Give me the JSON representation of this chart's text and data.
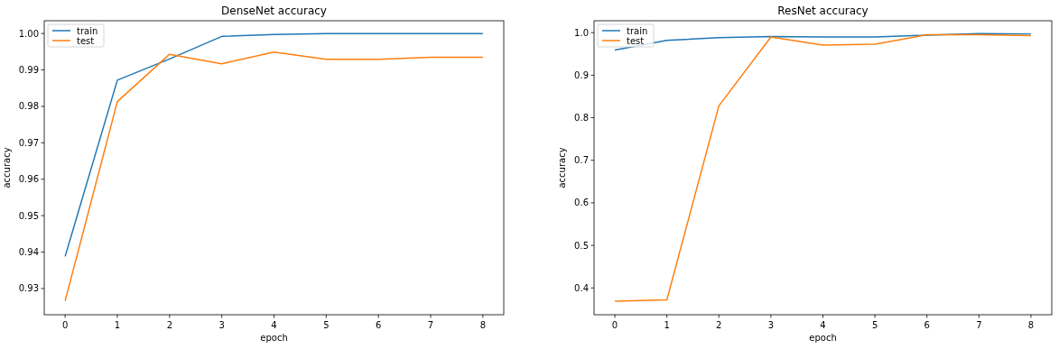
{
  "chart_data": [
    {
      "type": "line",
      "title": "DenseNet accuracy",
      "xlabel": "epoch",
      "ylabel": "accuracy",
      "x": [
        0,
        1,
        2,
        3,
        4,
        5,
        6,
        7,
        8
      ],
      "xlim": [
        -0.4,
        8.4
      ],
      "xticks": [
        0,
        1,
        2,
        3,
        4,
        5,
        6,
        7,
        8
      ],
      "ylim": [
        0.9228,
        1.0035
      ],
      "yticks": [
        0.93,
        0.94,
        0.95,
        0.96,
        0.97,
        0.98,
        0.99,
        {
          "value": 1.0,
          "label": "1.00"
        }
      ],
      "legend": "top left",
      "grid": false,
      "marker": "none",
      "line_style": "solid",
      "series": [
        {
          "name": "train",
          "color": "#1f77b4",
          "values": [
            0.9388,
            0.9872,
            0.993,
            0.9992,
            0.9997,
            1.0,
            1.0,
            1.0,
            1.0
          ]
        },
        {
          "name": "test",
          "color": "#ff7f0e",
          "values": [
            0.9266,
            0.9813,
            0.9943,
            0.9917,
            0.9949,
            0.9929,
            0.9929,
            0.9935,
            0.9935
          ]
        }
      ]
    },
    {
      "type": "line",
      "title": "ResNet accuracy",
      "xlabel": "epoch",
      "ylabel": "accuracy",
      "x": [
        0,
        1,
        2,
        3,
        4,
        5,
        6,
        7,
        8
      ],
      "xlim": [
        -0.4,
        8.4
      ],
      "xticks": [
        0,
        1,
        2,
        3,
        4,
        5,
        6,
        7,
        8
      ],
      "ylim": [
        0.337,
        1.028
      ],
      "yticks": [
        0.4,
        0.5,
        0.6,
        0.7,
        0.8,
        0.9,
        {
          "value": 1.0,
          "label": "1.0"
        }
      ],
      "legend": "top left",
      "grid": false,
      "marker": "none",
      "line_style": "solid",
      "series": [
        {
          "name": "train",
          "color": "#1f77b4",
          "values": [
            0.959,
            0.982,
            0.988,
            0.991,
            0.99,
            0.99,
            0.994,
            0.998,
            0.997
          ]
        },
        {
          "name": "test",
          "color": "#ff7f0e",
          "values": [
            0.369,
            0.372,
            0.828,
            0.99,
            0.971,
            0.973,
            0.995,
            0.995,
            0.993
          ]
        }
      ]
    }
  ]
}
